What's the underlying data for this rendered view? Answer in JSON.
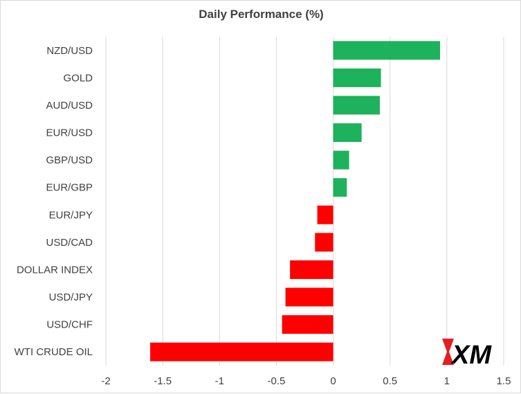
{
  "chart_data": {
    "type": "bar",
    "orientation": "horizontal",
    "title": "Daily Performance (%)",
    "categories": [
      "NZD/USD",
      "GOLD",
      "AUD/USD",
      "EUR/USD",
      "GBP/USD",
      "EUR/GBP",
      "EUR/JPY",
      "USD/CAD",
      "DOLLAR INDEX",
      "USD/JPY",
      "USD/CHF",
      "WTI CRUDE OIL"
    ],
    "values": [
      0.94,
      0.42,
      0.41,
      0.25,
      0.14,
      0.12,
      -0.14,
      -0.16,
      -0.38,
      -0.42,
      -0.45,
      -1.61
    ],
    "xlim": [
      -2,
      1.5
    ],
    "xticks": [
      "-2",
      "-1.5",
      "-1",
      "-0.5",
      "0",
      "0.5",
      "1",
      "1.5"
    ],
    "grid": "vertical",
    "colors": {
      "positive": "#1db25b",
      "negative": "#fe0000"
    }
  },
  "logo": {
    "text": "XM",
    "color": "#000000",
    "accent": "#e31e24"
  }
}
